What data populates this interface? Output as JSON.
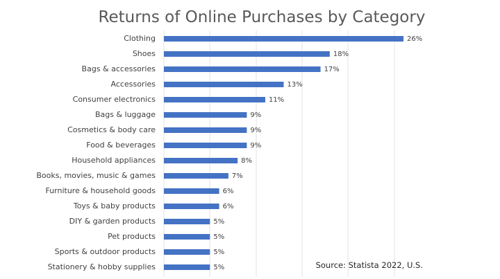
{
  "chart_data": {
    "type": "bar",
    "orientation": "horizontal",
    "title": "Returns of Online Purchases by Category",
    "xlabel": "",
    "ylabel": "",
    "xlim": [
      0,
      26
    ],
    "grid": true,
    "legend": "none",
    "bar_color": "#4472c4",
    "value_suffix": "%",
    "categories": [
      "Clothing",
      "Shoes",
      "Bags & accessories",
      "Accessories",
      "Consumer electronics",
      "Bags & luggage",
      "Cosmetics & body care",
      "Food & beverages",
      "Household appliances",
      "Books, movies, music & games",
      "Furniture & household goods",
      "Toys & baby products",
      "DIY & garden products",
      "Pet products",
      "Sports & outdoor products",
      "Stationery & hobby supplies"
    ],
    "values": [
      26,
      18,
      17,
      13,
      11,
      9,
      9,
      9,
      8,
      7,
      6,
      6,
      5,
      5,
      5,
      5
    ],
    "value_labels": [
      "26%",
      "18%",
      "17%",
      "13%",
      "11%",
      "9%",
      "9%",
      "9%",
      "8%",
      "7%",
      "6%",
      "6%",
      "5%",
      "5%",
      "5%",
      "5%"
    ],
    "annotation": "Source: Statista 2022, U.S."
  }
}
